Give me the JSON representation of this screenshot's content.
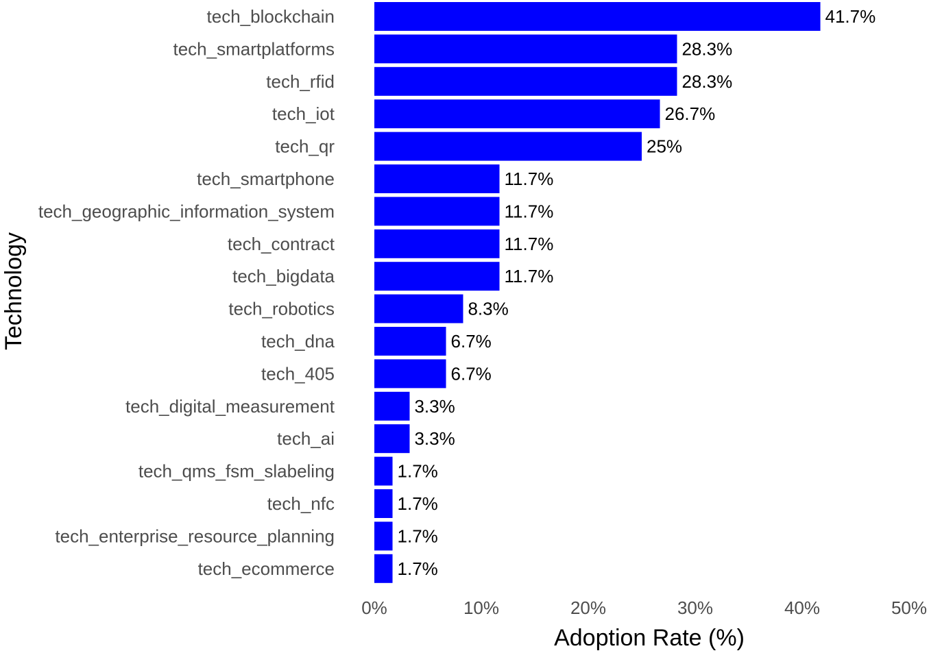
{
  "chart_data": {
    "type": "bar",
    "orientation": "horizontal",
    "categories": [
      "tech_blockchain",
      "tech_smartplatforms",
      "tech_rfid",
      "tech_iot",
      "tech_qr",
      "tech_smartphone",
      "tech_geographic_information_system",
      "tech_contract",
      "tech_bigdata",
      "tech_robotics",
      "tech_dna",
      "tech_405",
      "tech_digital_measurement",
      "tech_ai",
      "tech_qms_fsm_slabeling",
      "tech_nfc",
      "tech_enterprise_resource_planning",
      "tech_ecommerce"
    ],
    "values": [
      41.7,
      28.3,
      28.3,
      26.7,
      25,
      11.7,
      11.7,
      11.7,
      11.7,
      8.3,
      6.7,
      6.7,
      3.3,
      3.3,
      1.7,
      1.7,
      1.7,
      1.7
    ],
    "data_labels": [
      "41.7%",
      "28.3%",
      "28.3%",
      "26.7%",
      "25%",
      "11.7%",
      "11.7%",
      "11.7%",
      "11.7%",
      "8.3%",
      "6.7%",
      "6.7%",
      "3.3%",
      "3.3%",
      "1.7%",
      "1.7%",
      "1.7%",
      "1.7%"
    ],
    "xlabel": "Adoption Rate (%)",
    "ylabel": "Technology",
    "xlim": [
      0,
      50
    ],
    "xticks": [
      0,
      10,
      20,
      30,
      40,
      50
    ],
    "xtick_labels": [
      "0%",
      "10%",
      "20%",
      "30%",
      "40%",
      "50%"
    ],
    "grid": false,
    "legend": "none",
    "bar_color": "#0000FF"
  }
}
